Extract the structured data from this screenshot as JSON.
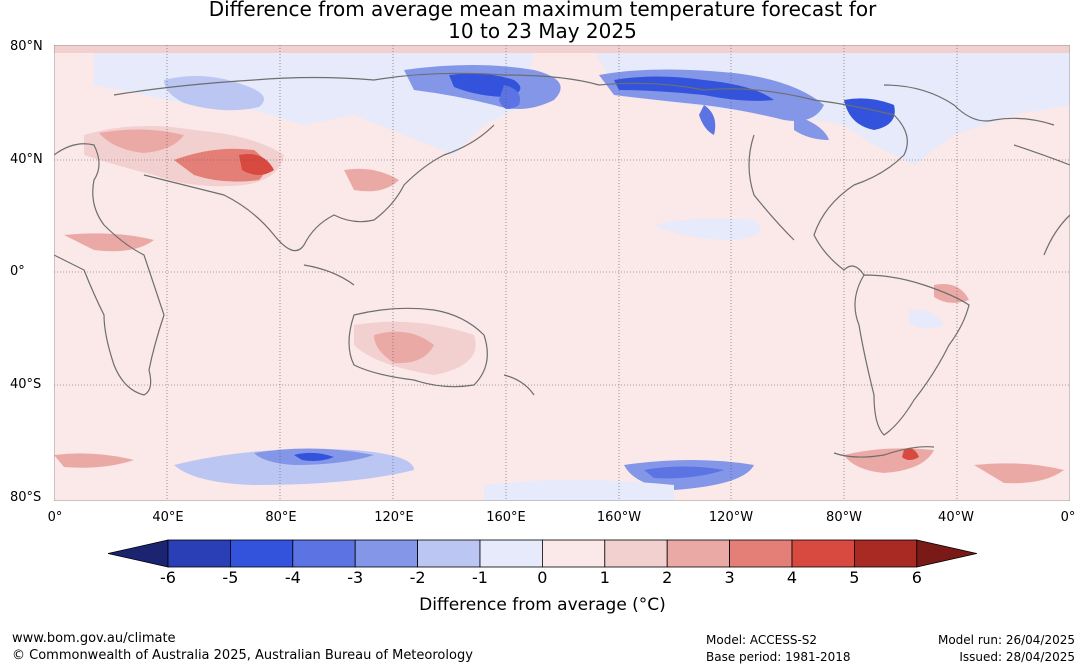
{
  "title": {
    "line1": "Difference from average mean maximum temperature forecast for",
    "line2": "10 to 23 May 2025"
  },
  "lat_labels": [
    "80°N",
    "40°N",
    "0°",
    "40°S",
    "80°S"
  ],
  "lon_labels": [
    "0°",
    "40°E",
    "80°E",
    "120°E",
    "160°E",
    "160°W",
    "120°W",
    "80°W",
    "40°W",
    "0°"
  ],
  "colorbar": {
    "label": "Difference from average (°C)",
    "ticks": [
      "-6",
      "-5",
      "-4",
      "-3",
      "-2",
      "-1",
      "0",
      "1",
      "2",
      "3",
      "4",
      "5",
      "6"
    ],
    "colors": [
      "#1a2470",
      "#2a3eb5",
      "#3453dd",
      "#5b73e3",
      "#8396e8",
      "#bcc6f3",
      "#e7eafa",
      "#fbe8e8",
      "#f3d0d0",
      "#eba9a5",
      "#e47f78",
      "#d84a3f",
      "#a82a22",
      "#7a1a16"
    ]
  },
  "footer": {
    "url": "www.bom.gov.au/climate",
    "copyright": "© Commonwealth of Australia 2025, Australian Bureau of Meteorology",
    "model": "Model: ACCESS-S2",
    "base_period": "Base period: 1981-2018",
    "model_run": "Model run: 26/04/2025",
    "issued": "Issued: 28/04/2025"
  }
}
